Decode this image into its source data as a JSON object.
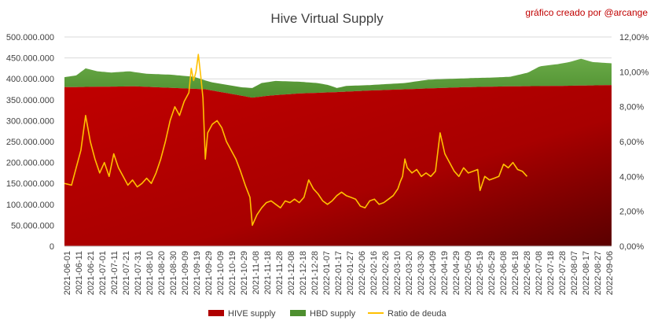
{
  "chart_data": {
    "type": "area",
    "title": "Hive Virtual Supply",
    "credit": "gráfico creado por @arcange",
    "y_left": {
      "ylim": [
        0,
        500000000
      ],
      "ticks": [
        "0",
        "50.000.000",
        "100.000.000",
        "150.000.000",
        "200.000.000",
        "250.000.000",
        "300.000.000",
        "350.000.000",
        "400.000.000",
        "450.000.000",
        "500.000.000"
      ]
    },
    "y_right": {
      "ylim": [
        0,
        12
      ],
      "ticks": [
        "0,00%",
        "2,00%",
        "4,00%",
        "6,00%",
        "8,00%",
        "10,00%",
        "12,00%"
      ]
    },
    "x_tick_labels": [
      "2021-06-01",
      "2021-06-11",
      "2021-06-21",
      "2021-07-01",
      "2021-07-11",
      "2021-07-21",
      "2021-07-31",
      "2021-08-10",
      "2021-08-20",
      "2021-08-30",
      "2021-09-09",
      "2021-09-19",
      "2021-09-29",
      "2021-10-09",
      "2021-10-19",
      "2021-10-29",
      "2021-11-08",
      "2021-11-18",
      "2021-11-28",
      "2021-12-08",
      "2021-12-18",
      "2021-12-28",
      "2022-01-07",
      "2022-01-17",
      "2022-01-27",
      "2022-02-06",
      "2022-02-16",
      "2022-02-26",
      "2022-03-10",
      "2022-03-20",
      "2022-03-30",
      "2022-04-09",
      "2022-04-19",
      "2022-04-29",
      "2022-05-09",
      "2022-05-19",
      "2022-05-29",
      "2022-06-08",
      "2022-06-18",
      "2022-06-28",
      "2022-07-08",
      "2022-07-18",
      "2022-07-28",
      "2022-08-07",
      "2022-08-17",
      "2022-08-27",
      "2022-09-06"
    ],
    "x_index_range": [
      0,
      466
    ],
    "series": [
      {
        "name": "HIVE supply",
        "axis": "left",
        "color": "#c00000",
        "points": [
          [
            0,
            380000000
          ],
          [
            60,
            382000000
          ],
          [
            120,
            375000000
          ],
          [
            160,
            355000000
          ],
          [
            175,
            360000000
          ],
          [
            200,
            365000000
          ],
          [
            230,
            368000000
          ],
          [
            260,
            372000000
          ],
          [
            300,
            376000000
          ],
          [
            340,
            380000000
          ],
          [
            380,
            382000000
          ],
          [
            420,
            383000000
          ],
          [
            466,
            385000000
          ]
        ]
      },
      {
        "name": "HBD supply",
        "axis": "left",
        "color": "#4e8f2f",
        "stacked_on": "HIVE supply",
        "total_points": [
          [
            0,
            404000000
          ],
          [
            10,
            408000000
          ],
          [
            18,
            425000000
          ],
          [
            28,
            418000000
          ],
          [
            40,
            415000000
          ],
          [
            55,
            418000000
          ],
          [
            70,
            412000000
          ],
          [
            90,
            410000000
          ],
          [
            110,
            405000000
          ],
          [
            125,
            392000000
          ],
          [
            140,
            385000000
          ],
          [
            150,
            380000000
          ],
          [
            160,
            378000000
          ],
          [
            168,
            390000000
          ],
          [
            180,
            395000000
          ],
          [
            200,
            393000000
          ],
          [
            215,
            390000000
          ],
          [
            225,
            385000000
          ],
          [
            232,
            378000000
          ],
          [
            240,
            383000000
          ],
          [
            260,
            385000000
          ],
          [
            290,
            390000000
          ],
          [
            310,
            398000000
          ],
          [
            330,
            400000000
          ],
          [
            350,
            402000000
          ],
          [
            365,
            403000000
          ],
          [
            380,
            405000000
          ],
          [
            395,
            415000000
          ],
          [
            405,
            430000000
          ],
          [
            420,
            435000000
          ],
          [
            430,
            440000000
          ],
          [
            440,
            448000000
          ],
          [
            450,
            440000000
          ],
          [
            466,
            437000000
          ]
        ]
      },
      {
        "name": "Ratio de deuda",
        "axis": "right",
        "color": "#ffc000",
        "points": [
          [
            0,
            3.6
          ],
          [
            6,
            3.5
          ],
          [
            10,
            4.5
          ],
          [
            14,
            5.5
          ],
          [
            18,
            7.5
          ],
          [
            22,
            6.0
          ],
          [
            26,
            5.0
          ],
          [
            30,
            4.2
          ],
          [
            34,
            4.8
          ],
          [
            38,
            4.0
          ],
          [
            42,
            5.3
          ],
          [
            46,
            4.5
          ],
          [
            50,
            4.0
          ],
          [
            54,
            3.5
          ],
          [
            58,
            3.8
          ],
          [
            62,
            3.4
          ],
          [
            66,
            3.6
          ],
          [
            70,
            3.9
          ],
          [
            74,
            3.6
          ],
          [
            78,
            4.2
          ],
          [
            82,
            5.0
          ],
          [
            86,
            6.0
          ],
          [
            90,
            7.2
          ],
          [
            94,
            8.0
          ],
          [
            98,
            7.5
          ],
          [
            102,
            8.3
          ],
          [
            106,
            8.8
          ],
          [
            108,
            10.2
          ],
          [
            110,
            9.5
          ],
          [
            112,
            10.0
          ],
          [
            114,
            11.0
          ],
          [
            116,
            9.8
          ],
          [
            118,
            8.5
          ],
          [
            120,
            5.0
          ],
          [
            122,
            6.5
          ],
          [
            126,
            7.0
          ],
          [
            130,
            7.2
          ],
          [
            134,
            6.8
          ],
          [
            138,
            6.0
          ],
          [
            142,
            5.5
          ],
          [
            146,
            5.0
          ],
          [
            150,
            4.3
          ],
          [
            154,
            3.5
          ],
          [
            158,
            2.8
          ],
          [
            160,
            1.2
          ],
          [
            164,
            1.8
          ],
          [
            168,
            2.2
          ],
          [
            172,
            2.5
          ],
          [
            176,
            2.6
          ],
          [
            180,
            2.4
          ],
          [
            184,
            2.2
          ],
          [
            188,
            2.6
          ],
          [
            192,
            2.5
          ],
          [
            196,
            2.7
          ],
          [
            200,
            2.5
          ],
          [
            204,
            2.8
          ],
          [
            208,
            3.8
          ],
          [
            212,
            3.3
          ],
          [
            216,
            3.0
          ],
          [
            220,
            2.6
          ],
          [
            224,
            2.4
          ],
          [
            228,
            2.6
          ],
          [
            232,
            2.9
          ],
          [
            236,
            3.1
          ],
          [
            240,
            2.9
          ],
          [
            244,
            2.8
          ],
          [
            248,
            2.7
          ],
          [
            252,
            2.3
          ],
          [
            256,
            2.2
          ],
          [
            260,
            2.6
          ],
          [
            264,
            2.7
          ],
          [
            268,
            2.4
          ],
          [
            272,
            2.5
          ],
          [
            276,
            2.7
          ],
          [
            280,
            2.9
          ],
          [
            284,
            3.3
          ],
          [
            286,
            3.7
          ],
          [
            288,
            4.0
          ],
          [
            290,
            5.0
          ],
          [
            292,
            4.5
          ],
          [
            296,
            4.2
          ],
          [
            300,
            4.4
          ],
          [
            304,
            4.0
          ],
          [
            308,
            4.2
          ],
          [
            312,
            4.0
          ],
          [
            316,
            4.3
          ],
          [
            320,
            6.5
          ],
          [
            324,
            5.3
          ],
          [
            328,
            4.8
          ],
          [
            332,
            4.3
          ],
          [
            336,
            4.0
          ],
          [
            340,
            4.5
          ],
          [
            344,
            4.2
          ],
          [
            348,
            4.3
          ],
          [
            352,
            4.4
          ],
          [
            354,
            3.2
          ],
          [
            358,
            4.0
          ],
          [
            362,
            3.8
          ],
          [
            366,
            3.9
          ],
          [
            370,
            4.0
          ],
          [
            374,
            4.7
          ],
          [
            378,
            4.5
          ],
          [
            382,
            4.8
          ],
          [
            386,
            4.4
          ],
          [
            390,
            4.3
          ],
          [
            394,
            4.0
          ]
        ]
      }
    ],
    "legend": {
      "position": "bottom",
      "entries": [
        "HIVE supply",
        "HBD supply",
        "Ratio de deuda"
      ]
    },
    "grid": true
  }
}
